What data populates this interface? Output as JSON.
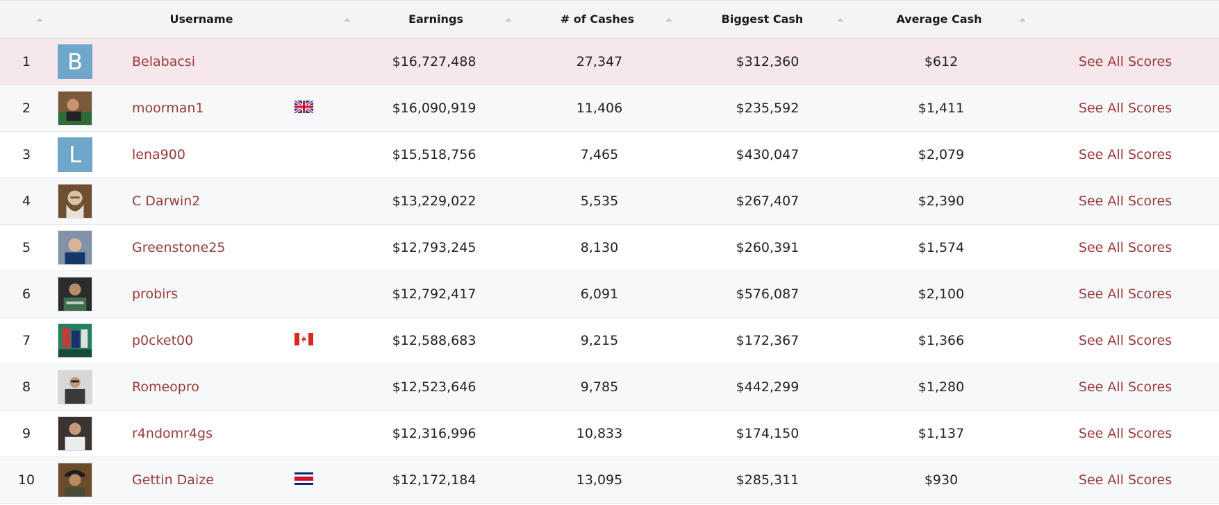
{
  "columns": {
    "rank_label": "",
    "username": "Username",
    "earnings": "Earnings",
    "cashes": "# of Cashes",
    "biggest": "Biggest Cash",
    "average": "Average Cash"
  },
  "colors": {
    "link": "#9a3a3a",
    "highlight_row": "#f6e7ec",
    "letter_avatar": "#6ea7c9"
  },
  "rows": [
    {
      "rank": "1",
      "avatar_letter": "B",
      "username": "Belabacsi",
      "flag": "",
      "earnings": "$16,727,488",
      "cashes": "27,347",
      "biggest": "$312,360",
      "average": "$612",
      "link": "See All Scores"
    },
    {
      "rank": "2",
      "avatar_letter": "",
      "username": "moorman1",
      "flag": "uk-flag-icon",
      "earnings": "$16,090,919",
      "cashes": "11,406",
      "biggest": "$235,592",
      "average": "$1,411",
      "link": "See All Scores"
    },
    {
      "rank": "3",
      "avatar_letter": "L",
      "username": "lena900",
      "flag": "",
      "earnings": "$15,518,756",
      "cashes": "7,465",
      "biggest": "$430,047",
      "average": "$2,079",
      "link": "See All Scores"
    },
    {
      "rank": "4",
      "avatar_letter": "",
      "username": "C Darwin2",
      "flag": "",
      "earnings": "$13,229,022",
      "cashes": "5,535",
      "biggest": "$267,407",
      "average": "$2,390",
      "link": "See All Scores"
    },
    {
      "rank": "5",
      "avatar_letter": "",
      "username": "Greenstone25",
      "flag": "",
      "earnings": "$12,793,245",
      "cashes": "8,130",
      "biggest": "$260,391",
      "average": "$1,574",
      "link": "See All Scores"
    },
    {
      "rank": "6",
      "avatar_letter": "",
      "username": "probirs",
      "flag": "",
      "earnings": "$12,792,417",
      "cashes": "6,091",
      "biggest": "$576,087",
      "average": "$2,100",
      "link": "See All Scores"
    },
    {
      "rank": "7",
      "avatar_letter": "",
      "username": "p0cket00",
      "flag": "canada-flag-icon",
      "earnings": "$12,588,683",
      "cashes": "9,215",
      "biggest": "$172,367",
      "average": "$1,366",
      "link": "See All Scores"
    },
    {
      "rank": "8",
      "avatar_letter": "",
      "username": "Romeopro",
      "flag": "",
      "earnings": "$12,523,646",
      "cashes": "9,785",
      "biggest": "$442,299",
      "average": "$1,280",
      "link": "See All Scores"
    },
    {
      "rank": "9",
      "avatar_letter": "",
      "username": "r4ndomr4gs",
      "flag": "",
      "earnings": "$12,316,996",
      "cashes": "10,833",
      "biggest": "$174,150",
      "average": "$1,137",
      "link": "See All Scores"
    },
    {
      "rank": "10",
      "avatar_letter": "",
      "username": "Gettin Daize",
      "flag": "costa-rica-flag-icon",
      "earnings": "$12,172,184",
      "cashes": "13,095",
      "biggest": "$285,311",
      "average": "$930",
      "link": "See All Scores"
    }
  ]
}
